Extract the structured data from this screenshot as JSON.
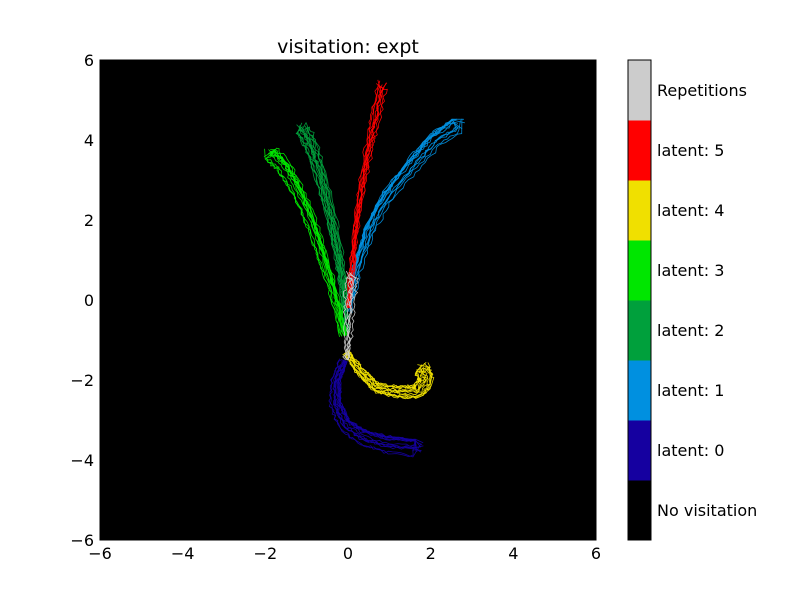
{
  "chart_data": {
    "type": "line",
    "title": "visitation: expt",
    "xlabel": "",
    "ylabel": "",
    "xlim": [
      -6,
      6
    ],
    "ylim": [
      -6,
      6
    ],
    "xticks": [
      -6,
      -4,
      -2,
      0,
      2,
      4,
      6
    ],
    "yticks": [
      -6,
      -4,
      -2,
      0,
      2,
      4,
      6
    ],
    "background_color": "#000000",
    "grid": false,
    "colorbar": {
      "position": "right",
      "entries": [
        {
          "label": "No visitation",
          "color": "#000000"
        },
        {
          "label": "latent: 0",
          "color": "#1500a0"
        },
        {
          "label": "latent: 1",
          "color": "#0090e0"
        },
        {
          "label": "latent: 2",
          "color": "#00a03c"
        },
        {
          "label": "latent: 3",
          "color": "#00e600"
        },
        {
          "label": "latent: 4",
          "color": "#f0e000"
        },
        {
          "label": "latent: 5",
          "color": "#ff0000"
        },
        {
          "label": "Repetitions",
          "color": "#cccccc"
        }
      ]
    },
    "series": [
      {
        "latent": 0,
        "color": "#1500a0",
        "trajectories": 14,
        "path": [
          [
            -0.1,
            -1.5
          ],
          [
            -0.3,
            -2.0
          ],
          [
            -0.3,
            -2.6
          ],
          [
            -0.1,
            -3.1
          ],
          [
            0.3,
            -3.4
          ],
          [
            0.9,
            -3.6
          ],
          [
            1.7,
            -3.7
          ]
        ]
      },
      {
        "latent": 1,
        "color": "#0090e0",
        "trajectories": 14,
        "path": [
          [
            0.0,
            -0.3
          ],
          [
            0.2,
            0.7
          ],
          [
            0.5,
            1.7
          ],
          [
            0.9,
            2.5
          ],
          [
            1.5,
            3.3
          ],
          [
            2.1,
            4.0
          ],
          [
            2.7,
            4.4
          ]
        ]
      },
      {
        "latent": 2,
        "color": "#00a03c",
        "trajectories": 14,
        "path": [
          [
            -0.05,
            -0.8
          ],
          [
            -0.1,
            0.3
          ],
          [
            -0.25,
            1.3
          ],
          [
            -0.45,
            2.3
          ],
          [
            -0.7,
            3.3
          ],
          [
            -0.9,
            3.9
          ],
          [
            -1.1,
            4.3
          ]
        ]
      },
      {
        "latent": 3,
        "color": "#00e600",
        "trajectories": 14,
        "path": [
          [
            -0.1,
            -0.9
          ],
          [
            -0.35,
            0.2
          ],
          [
            -0.65,
            1.2
          ],
          [
            -0.95,
            2.1
          ],
          [
            -1.3,
            2.9
          ],
          [
            -1.6,
            3.4
          ],
          [
            -1.9,
            3.7
          ]
        ]
      },
      {
        "latent": 4,
        "color": "#f0e000",
        "trajectories": 14,
        "path": [
          [
            -0.05,
            -1.3
          ],
          [
            0.3,
            -1.8
          ],
          [
            0.7,
            -2.2
          ],
          [
            1.2,
            -2.3
          ],
          [
            1.7,
            -2.3
          ],
          [
            1.9,
            -2.0
          ],
          [
            1.8,
            -1.7
          ]
        ]
      },
      {
        "latent": 5,
        "color": "#ff0000",
        "trajectories": 10,
        "path": [
          [
            0.0,
            -0.2
          ],
          [
            0.1,
            0.9
          ],
          [
            0.2,
            2.0
          ],
          [
            0.35,
            3.0
          ],
          [
            0.5,
            3.9
          ],
          [
            0.65,
            4.6
          ],
          [
            0.8,
            5.4
          ]
        ]
      },
      {
        "latent": "repetitions",
        "color": "#cccccc",
        "trajectories": 6,
        "path": [
          [
            -0.05,
            -1.5
          ],
          [
            -0.02,
            -0.9
          ],
          [
            0.0,
            -0.3
          ],
          [
            0.02,
            0.2
          ],
          [
            0.05,
            0.6
          ]
        ]
      }
    ]
  }
}
